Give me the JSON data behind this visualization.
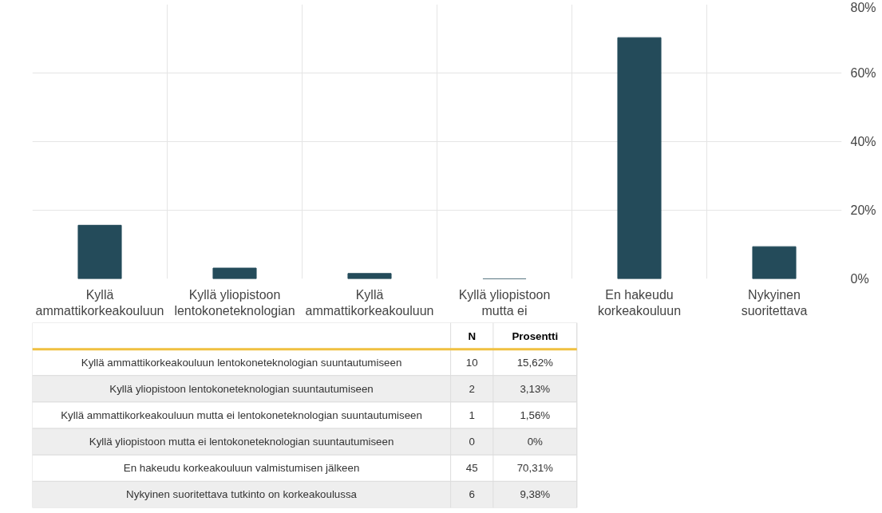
{
  "chart_data": [
    {
      "type": "bar",
      "categories": [
        "Kyllä\nammattikorkeakouluun",
        "Kyllä yliopistoon\nlentokoneteknologian",
        "Kyllä\nammattikorkeakouluun",
        "Kyllä yliopistoon\nmutta ei",
        "En hakeudu\nkorkeakouluun",
        "Nykyinen\nsuoritettava"
      ],
      "values": [
        15.62,
        3.13,
        1.56,
        0,
        70.31,
        9.38
      ],
      "color": "#244b5a",
      "ylim": [
        0,
        80
      ],
      "yticks": [
        {
          "value": 0,
          "label": "0%"
        },
        {
          "value": 20,
          "label": "20%"
        },
        {
          "value": 40,
          "label": "40%"
        },
        {
          "value": 60,
          "label": "60%"
        },
        {
          "value": 80,
          "label": "80%"
        }
      ],
      "grid": true
    },
    {
      "type": "other",
      "categories": [
        "Kyllä ammattikorkeakouluun lentokoneteknologian suuntautumiseen",
        "Kyllä yliopistoon lentokoneteknologian suuntautumiseen",
        "Kyllä ammattikorkeakouluun mutta ei lentokoneteknologian suuntautumiseen",
        "Kyllä yliopistoon mutta ei lentokoneteknologian suuntautumiseen",
        "En hakeudu korkeakouluun valmistumisen jälkeen",
        "Nykyinen suoritettava tutkinto on korkeakoulussa"
      ],
      "series": [
        {
          "name": "N",
          "colors": [
            "#ffffff",
            "#eeeeee",
            "#ffffff",
            "#eeeeee",
            "#ffffff",
            "#eeeeee"
          ],
          "values": [
            10,
            2,
            1,
            0,
            45,
            6
          ]
        },
        {
          "name": "Prosentti",
          "values": [
            15.62,
            3.13,
            1.56,
            0,
            70.31,
            9.38
          ],
          "value_labels": [
            "15,62%",
            "3,13%",
            "1,56%",
            "0%",
            "70,31%",
            "9,38%"
          ]
        }
      ],
      "data_labels": true
    }
  ]
}
